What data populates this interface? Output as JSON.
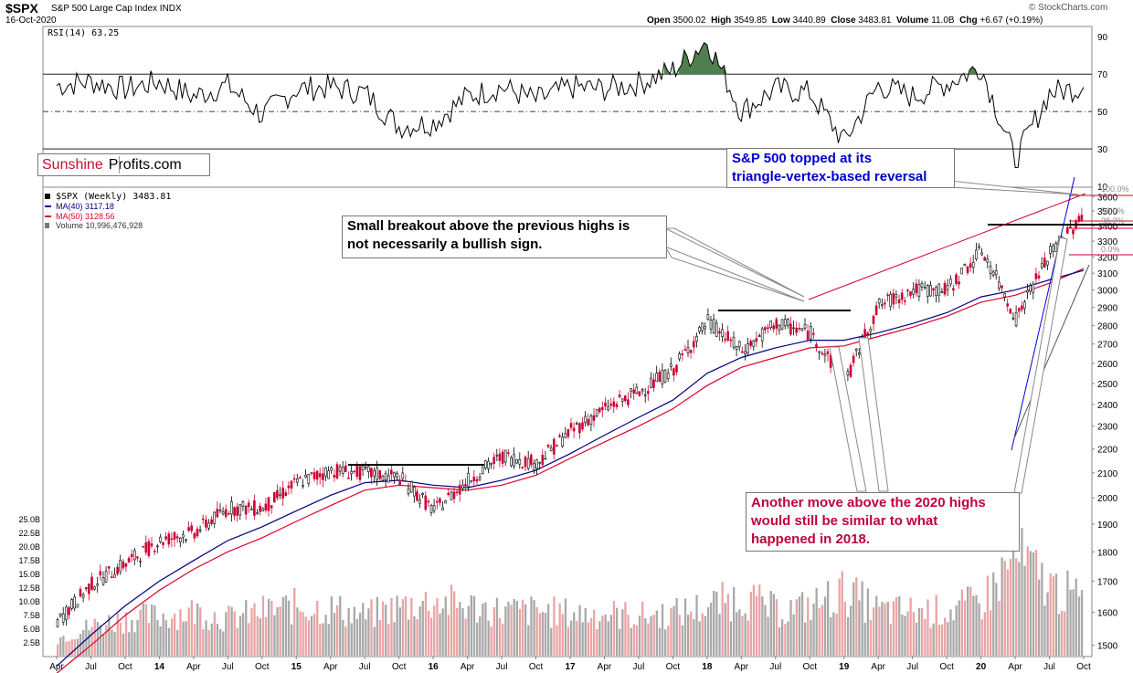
{
  "header": {
    "ticker": "$SPX",
    "name": "S&P 500 Large Cap Index",
    "exchange": "INDX",
    "date": "16-Oct-2020",
    "ohlc": [
      {
        "label": "Open",
        "value": "3500.02"
      },
      {
        "label": "High",
        "value": "3549.85"
      },
      {
        "label": "Low",
        "value": "3440.89"
      },
      {
        "label": "Close",
        "value": "3483.81"
      },
      {
        "label": "Volume",
        "value": "11.0B"
      },
      {
        "label": "Chg",
        "value": "+6.67 (+0.19%)"
      }
    ],
    "credit": "© StockCharts.com"
  },
  "logo": {
    "part1": "Sunshine",
    "part2": "Profits.com"
  },
  "rsi_panel": {
    "label": "RSI(14) 63.25"
  },
  "legend": {
    "price": "$SPX (Weekly) 3483.81",
    "ma40": "MA(40) 3117.18",
    "ma50": "MA(50) 3128.56",
    "volume": "Volume 10,996,476,928"
  },
  "annotations": {
    "breakout_line1": "Small breakout above the previous highs is",
    "breakout_line2": "not necessarily a bullish sign.",
    "topped_line1": "S&P 500 topped at its",
    "topped_line2": "triangle-vertex-based reversal",
    "move_line1": "Another move above the 2020 highs",
    "move_line2": "would still be similar to what",
    "move_line3": "happened in 2018."
  },
  "colors": {
    "price_candles": "#000000",
    "down_candles": "#cc0033",
    "ma40": "#000080",
    "ma50": "#e0002a",
    "rsi_fill": "#4f7f4f",
    "volume_up": "#a9a9a9",
    "volume_down": "#eba4a4",
    "topped_text": "#0000cc",
    "move_text": "#c0003c",
    "trendline_blue": "#0000e0",
    "trendline_red": "#d8002a"
  },
  "chart_data": {
    "type": "candlestick",
    "title": "$SPX S&P 500 Large Cap Index",
    "timeframe": "weekly",
    "price_axis": {
      "ticks": [
        "3600",
        "3500",
        "3400",
        "3300",
        "3200",
        "3100",
        "3000",
        "2900",
        "2800",
        "2700",
        "2600",
        "2500",
        "2400",
        "2300",
        "2200",
        "2100",
        "2000",
        "1900",
        "1800",
        "1700",
        "1600",
        "1500"
      ],
      "scale": "log"
    },
    "rsi_axis": {
      "ticks": [
        "90",
        "70",
        "50",
        "30",
        "10"
      ],
      "ylim": [
        10,
        95
      ]
    },
    "volume_axis": {
      "ticks": [
        "25.0B",
        "22.5B",
        "20.0B",
        "17.5B",
        "15.0B",
        "12.5B",
        "10.0B",
        "7.5B",
        "5.0B",
        "2.5B"
      ]
    },
    "fib_labels": [
      "100.0%",
      "50.0%",
      "38.2%",
      "0.0%"
    ],
    "x_ticks": [
      "Apr",
      "Jul",
      "Oct",
      "14",
      "Apr",
      "Jul",
      "Oct",
      "15",
      "Apr",
      "Jul",
      "Oct",
      "16",
      "Apr",
      "Jul",
      "Oct",
      "17",
      "Apr",
      "Jul",
      "Oct",
      "18",
      "Apr",
      "Jul",
      "Oct",
      "19",
      "Apr",
      "Jul",
      "Oct",
      "20",
      "Apr",
      "Jul",
      "Oct"
    ],
    "x": [
      "2013-04",
      "2013-07",
      "2013-10",
      "2014-01",
      "2014-04",
      "2014-07",
      "2014-10",
      "2015-01",
      "2015-04",
      "2015-07",
      "2015-10",
      "2016-01",
      "2016-04",
      "2016-07",
      "2016-10",
      "2017-01",
      "2017-04",
      "2017-07",
      "2017-10",
      "2018-01",
      "2018-04",
      "2018-07",
      "2018-10",
      "2019-01",
      "2019-04",
      "2019-07",
      "2019-10",
      "2020-01",
      "2020-04",
      "2020-07",
      "2020-10"
    ],
    "series": [
      {
        "name": "$SPX (Weekly)",
        "values": [
          1570,
          1690,
          1760,
          1840,
          1870,
          1960,
          1960,
          2060,
          2110,
          2100,
          2080,
          1950,
          2070,
          2170,
          2140,
          2280,
          2380,
          2460,
          2570,
          2820,
          2660,
          2810,
          2760,
          2500,
          2910,
          3000,
          3000,
          3240,
          2840,
          3220,
          3480
        ]
      },
      {
        "name": "MA(40)",
        "values": [
          1440,
          1530,
          1620,
          1700,
          1770,
          1840,
          1890,
          1950,
          2010,
          2060,
          2070,
          2050,
          2040,
          2070,
          2110,
          2180,
          2260,
          2340,
          2420,
          2550,
          2630,
          2680,
          2720,
          2720,
          2760,
          2810,
          2870,
          2960,
          3000,
          3060,
          3117
        ]
      },
      {
        "name": "MA(50)",
        "values": [
          1420,
          1500,
          1590,
          1670,
          1740,
          1800,
          1850,
          1910,
          1970,
          2030,
          2050,
          2040,
          2030,
          2050,
          2090,
          2160,
          2230,
          2300,
          2380,
          2490,
          2580,
          2630,
          2680,
          2690,
          2740,
          2790,
          2850,
          2930,
          2970,
          3040,
          3128
        ]
      }
    ],
    "rsi": [
      64,
      66,
      62,
      66,
      58,
      64,
      48,
      62,
      63,
      60,
      42,
      44,
      58,
      63,
      56,
      63,
      62,
      65,
      72,
      88,
      50,
      62,
      60,
      34,
      64,
      58,
      65,
      74,
      24,
      60,
      63
    ],
    "volume_billions": [
      3.5,
      6,
      7.5,
      8,
      9,
      7.5,
      9,
      10,
      9.5,
      8,
      10,
      11,
      10,
      9,
      9,
      8.5,
      8.5,
      8,
      8.5,
      10,
      12,
      9,
      10,
      13,
      9,
      9,
      9,
      11,
      20,
      14,
      11
    ],
    "annotations": [
      "Small breakout above the previous highs is not necessarily a bullish sign.",
      "S&P 500 topped at its triangle-vertex-based reversal",
      "Another move above the 2020 highs would still be similar to what happened in 2018."
    ]
  }
}
